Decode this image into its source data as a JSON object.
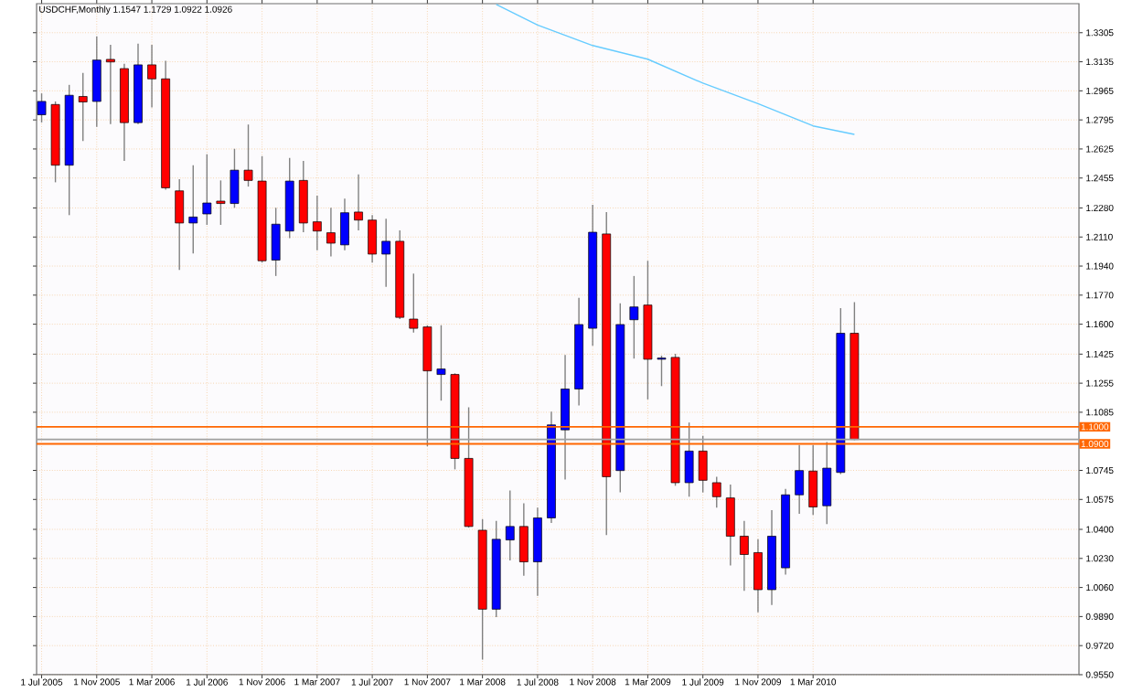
{
  "chart_data": {
    "type": "candlestick",
    "title": "USDCHF,Monthly  1.1547 1.1729 1.0922 1.0926",
    "x": [
      "2005-07",
      "2005-08",
      "2005-09",
      "2005-10",
      "2005-11",
      "2005-12",
      "2006-01",
      "2006-02",
      "2006-03",
      "2006-04",
      "2006-05",
      "2006-06",
      "2006-07",
      "2006-08",
      "2006-09",
      "2006-10",
      "2006-11",
      "2006-12",
      "2007-01",
      "2007-02",
      "2007-03",
      "2007-04",
      "2007-05",
      "2007-06",
      "2007-07",
      "2007-08",
      "2007-09",
      "2007-10",
      "2007-11",
      "2007-12",
      "2008-01",
      "2008-02",
      "2008-03",
      "2008-04",
      "2008-05",
      "2008-06",
      "2008-07",
      "2008-08",
      "2008-09",
      "2008-10",
      "2008-11",
      "2008-12",
      "2009-01",
      "2009-02",
      "2009-03",
      "2009-04",
      "2009-05",
      "2009-06",
      "2009-07",
      "2009-08",
      "2009-09",
      "2009-10",
      "2009-11",
      "2009-12",
      "2010-01",
      "2010-02",
      "2010-03",
      "2010-04",
      "2010-05",
      "2010-06"
    ],
    "ohlc": [
      [
        1.2825,
        1.295,
        1.278,
        1.2903
      ],
      [
        1.2885,
        1.2903,
        1.243,
        1.253
      ],
      [
        1.253,
        1.3,
        1.2238,
        1.2939
      ],
      [
        1.2932,
        1.307,
        1.2672,
        1.29
      ],
      [
        1.2903,
        1.3284,
        1.2754,
        1.3145
      ],
      [
        1.3149,
        1.3234,
        1.2771,
        1.3134
      ],
      [
        1.3095,
        1.3124,
        1.2555,
        1.2779
      ],
      [
        1.2779,
        1.3241,
        1.2771,
        1.3117
      ],
      [
        1.3117,
        1.3234,
        1.2868,
        1.3035
      ],
      [
        1.3035,
        1.3141,
        1.2387,
        1.2398
      ],
      [
        1.238,
        1.2448,
        1.1918,
        1.2192
      ],
      [
        1.2192,
        1.253,
        1.2014,
        1.2227
      ],
      [
        1.2245,
        1.2594,
        1.2181,
        1.2309
      ],
      [
        1.232,
        1.2441,
        1.2181,
        1.2306
      ],
      [
        1.2306,
        1.2626,
        1.2281,
        1.2501
      ],
      [
        1.2501,
        1.2768,
        1.2405,
        1.2441
      ],
      [
        1.2437,
        1.2583,
        1.196,
        1.1971
      ],
      [
        1.1975,
        1.2281,
        1.1882,
        1.2185
      ],
      [
        1.2145,
        1.2572,
        1.2103,
        1.2437
      ],
      [
        1.2441,
        1.2555,
        1.2138,
        1.2192
      ],
      [
        1.2199,
        1.2352,
        1.2032,
        1.2145
      ],
      [
        1.2135,
        1.2281,
        1.1996,
        1.2074
      ],
      [
        1.2064,
        1.2334,
        1.2032,
        1.2252
      ],
      [
        1.2256,
        1.2476,
        1.2149,
        1.2209
      ],
      [
        1.2209,
        1.2238,
        1.196,
        1.201
      ],
      [
        1.201,
        1.2217,
        1.1818,
        1.2085
      ],
      [
        1.2085,
        1.2149,
        1.163,
        1.164
      ],
      [
        1.163,
        1.1896,
        1.1551,
        1.1576
      ],
      [
        1.1584,
        1.1594,
        1.0886,
        1.1327
      ],
      [
        1.1306,
        1.1594,
        1.1153,
        1.1338
      ],
      [
        1.1306,
        1.1313,
        1.0751,
        1.0815
      ],
      [
        1.0815,
        1.1114,
        1.041,
        1.0417
      ],
      [
        1.0395,
        1.046,
        0.9638,
        0.9933
      ],
      [
        0.9933,
        1.0449,
        0.9887,
        1.0342
      ],
      [
        1.0338,
        1.0627,
        1.0218,
        1.0417
      ],
      [
        1.0417,
        1.0552,
        1.0129,
        1.021
      ],
      [
        1.021,
        1.0527,
        1.0011,
        1.0467
      ],
      [
        1.0467,
        1.1089,
        1.0438,
        1.1011
      ],
      [
        1.0982,
        1.142,
        1.0691,
        1.1221
      ],
      [
        1.1221,
        1.1754,
        1.1125,
        1.1598
      ],
      [
        1.1576,
        1.2298,
        1.1473,
        1.2138
      ],
      [
        1.2128,
        1.2256,
        1.0367,
        1.0708
      ],
      [
        1.0744,
        1.1722,
        1.0616,
        1.1598
      ],
      [
        1.1626,
        1.1882,
        1.1399,
        1.1701
      ],
      [
        1.1712,
        1.1971,
        1.116,
        1.1395
      ],
      [
        1.1395,
        1.1416,
        1.1238,
        1.1402
      ],
      [
        1.1406,
        1.1427,
        1.0655,
        1.0673
      ],
      [
        1.0673,
        1.1025,
        1.0591,
        1.0858
      ],
      [
        1.0858,
        1.0947,
        1.0616,
        1.0687
      ],
      [
        1.0673,
        1.0708,
        1.0527,
        1.0591
      ],
      [
        1.0584,
        1.0662,
        1.0189,
        1.036
      ],
      [
        1.036,
        1.0449,
        1.004,
        1.0253
      ],
      [
        1.0264,
        1.0342,
        0.9915,
        1.0047
      ],
      [
        1.0047,
        1.0513,
        0.9958,
        1.036
      ],
      [
        1.0175,
        1.0637,
        1.0136,
        1.0602
      ],
      [
        1.0602,
        1.0893,
        1.0491,
        1.0744
      ],
      [
        1.0741,
        1.0893,
        1.0484,
        1.0531
      ],
      [
        1.0538,
        1.0911,
        1.0431,
        1.0758
      ],
      [
        1.0733,
        1.1694,
        1.0723,
        1.1547
      ],
      [
        1.1547,
        1.1729,
        1.0922,
        1.0926
      ]
    ],
    "colors": [
      "#0000ff",
      "#ff0000",
      "#0000ff",
      "#ff0000",
      "#0000ff",
      "#ff0000",
      "#ff0000",
      "#0000ff",
      "#ff0000",
      "#ff0000",
      "#ff0000",
      "#0000ff",
      "#0000ff",
      "#ff0000",
      "#0000ff",
      "#ff0000",
      "#ff0000",
      "#0000ff",
      "#0000ff",
      "#ff0000",
      "#ff0000",
      "#ff0000",
      "#0000ff",
      "#ff0000",
      "#ff0000",
      "#0000ff",
      "#ff0000",
      "#ff0000",
      "#ff0000",
      "#0000ff",
      "#ff0000",
      "#ff0000",
      "#ff0000",
      "#0000ff",
      "#0000ff",
      "#ff0000",
      "#0000ff",
      "#0000ff",
      "#0000ff",
      "#0000ff",
      "#0000ff",
      "#ff0000",
      "#0000ff",
      "#0000ff",
      "#ff0000",
      "#0000ff",
      "#ff0000",
      "#0000ff",
      "#ff0000",
      "#ff0000",
      "#ff0000",
      "#ff0000",
      "#ff0000",
      "#0000ff",
      "#0000ff",
      "#0000ff",
      "#ff0000",
      "#0000ff",
      "#0000ff",
      "#ff0000"
    ],
    "series": [
      {
        "type": "line",
        "color": "#66ccff",
        "x": [
          "2008-04",
          "2008-07",
          "2008-11",
          "2009-03",
          "2009-07",
          "2009-11",
          "2010-03",
          "2010-06"
        ],
        "values": [
          1.347,
          1.335,
          1.323,
          1.315,
          1.301,
          1.289,
          1.276,
          1.271
        ]
      }
    ],
    "xlim": [
      "2005-06-20",
      "2011-10-10"
    ],
    "xticks": [
      {
        "value": "2005-07",
        "label": "1 Jul 2005"
      },
      {
        "value": "2005-11",
        "label": "1 Nov 2005"
      },
      {
        "value": "2006-03",
        "label": "1 Mar 2006"
      },
      {
        "value": "2006-07",
        "label": "1 Jul 2006"
      },
      {
        "value": "2006-11",
        "label": "1 Nov 2006"
      },
      {
        "value": "2007-03",
        "label": "1 Mar 2007"
      },
      {
        "value": "2007-07",
        "label": "1 Jul 2007"
      },
      {
        "value": "2007-11",
        "label": "1 Nov 2007"
      },
      {
        "value": "2008-03",
        "label": "1 Mar 2008"
      },
      {
        "value": "2008-07",
        "label": "1 Jul 2008"
      },
      {
        "value": "2008-11",
        "label": "1 Nov 2008"
      },
      {
        "value": "2009-03",
        "label": "1 Mar 2009"
      },
      {
        "value": "2009-07",
        "label": "1 Jul 2009"
      },
      {
        "value": "2009-11",
        "label": "1 Nov 2009"
      },
      {
        "value": "2010-03",
        "label": "1 Mar 2010"
      }
    ],
    "ylim": [
      0.955,
      1.3475
    ],
    "yticks": [
      {
        "value": 1.3305,
        "label": "1.3305"
      },
      {
        "value": 1.3135,
        "label": "1.3135"
      },
      {
        "value": 1.2965,
        "label": "1.2965"
      },
      {
        "value": 1.2795,
        "label": "1.2795"
      },
      {
        "value": 1.2625,
        "label": "1.2625"
      },
      {
        "value": 1.2455,
        "label": "1.2455"
      },
      {
        "value": 1.228,
        "label": "1.2280"
      },
      {
        "value": 1.211,
        "label": "1.2110"
      },
      {
        "value": 1.194,
        "label": "1.1940"
      },
      {
        "value": 1.177,
        "label": "1.1770"
      },
      {
        "value": 1.16,
        "label": "1.1600"
      },
      {
        "value": 1.1425,
        "label": "1.1425"
      },
      {
        "value": 1.1255,
        "label": "1.1255"
      },
      {
        "value": 1.1085,
        "label": "1.1085"
      },
      {
        "value": 1.0745,
        "label": "1.0745"
      },
      {
        "value": 1.0575,
        "label": "1.0575"
      },
      {
        "value": 1.04,
        "label": "1.0400"
      },
      {
        "value": 1.023,
        "label": "1.0230"
      },
      {
        "value": 1.006,
        "label": "1.0060"
      },
      {
        "value": 0.989,
        "label": "0.9890"
      },
      {
        "value": 0.972,
        "label": "0.9720"
      },
      {
        "value": 0.955,
        "label": "0.9550"
      }
    ],
    "ref_lines": [
      {
        "axis": "y",
        "value": 1.1,
        "label": "1.1000",
        "color": "#ff6600"
      },
      {
        "axis": "y",
        "value": 1.09,
        "label": "1.0900",
        "color": "#ff6600"
      },
      {
        "axis": "y",
        "value": 1.0926,
        "color": "#a0a0a0"
      }
    ],
    "grid": true
  }
}
